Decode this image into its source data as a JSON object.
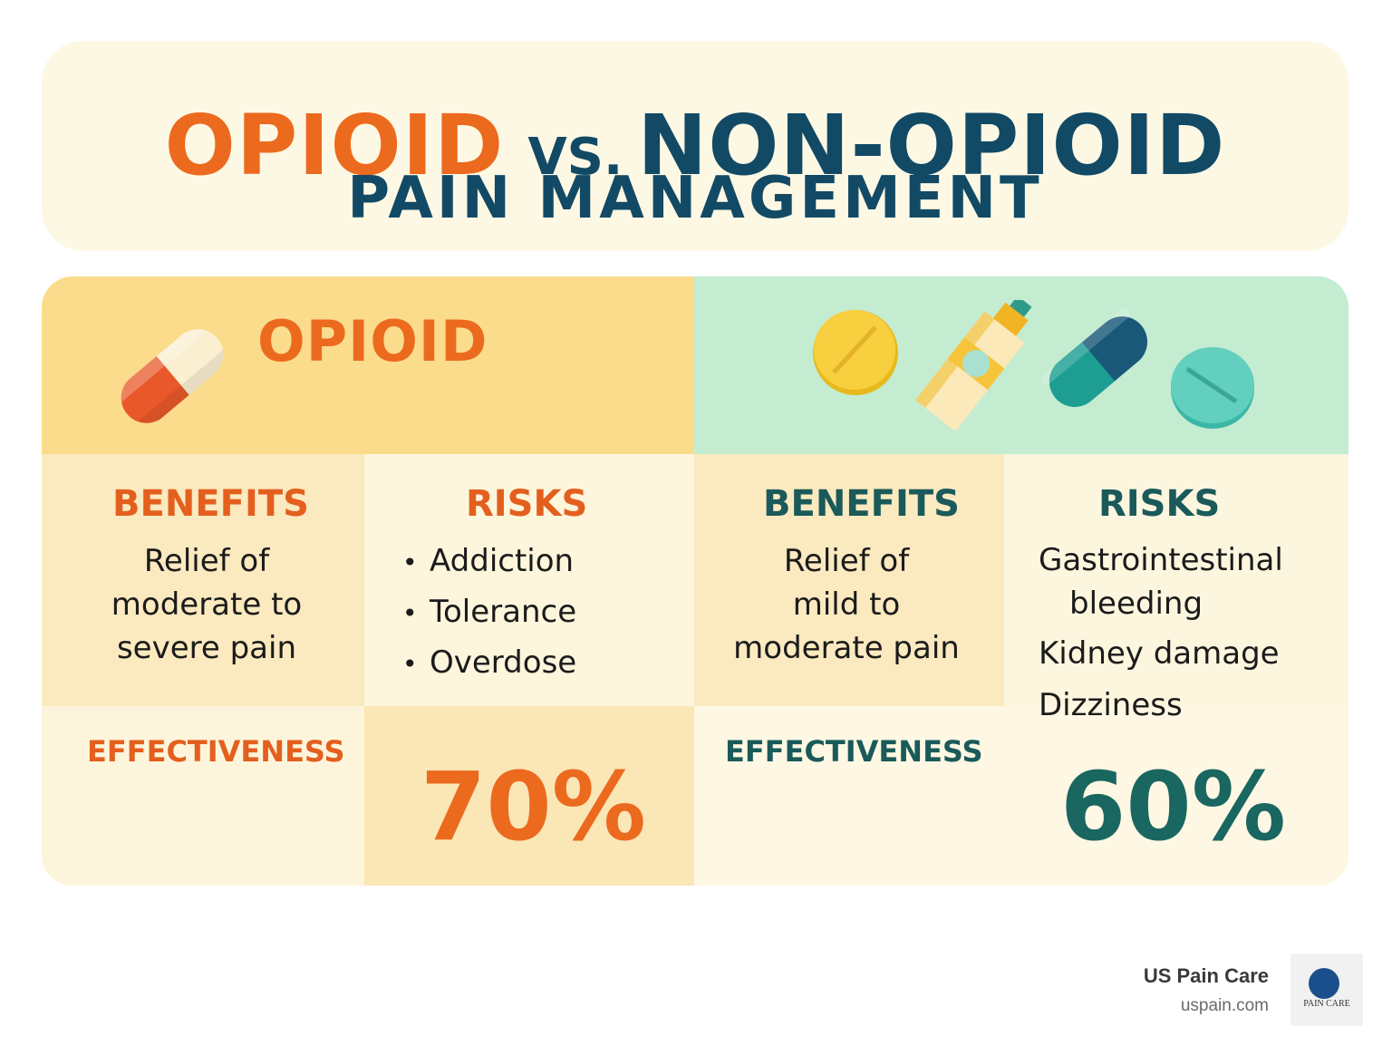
{
  "title": {
    "opioid": "OPIOID",
    "vs": "VS.",
    "non_opioid": "NON-OPIOID",
    "subtitle": "PAIN MANAGEMENT"
  },
  "opioid": {
    "header": "OPIOID",
    "benefits_heading": "BENEFITS",
    "benefits_lines": [
      "Relief of",
      "moderate to",
      "severe pain"
    ],
    "risks_heading": "RISKS",
    "risks": [
      "Addiction",
      "Tolerance",
      "Overdose"
    ],
    "effectiveness_label": "EFFECTIVENESS",
    "effectiveness_value": "70%"
  },
  "non_opioid": {
    "benefits_heading": "BENEFITS",
    "benefits_lines": [
      "Relief of",
      "mild to",
      "moderate pain"
    ],
    "risks_heading": "RISKS",
    "risks_lines": [
      "Gastrointestinal",
      "bleeding",
      "Kidney damage",
      "Dizziness"
    ],
    "effectiveness_label": "EFFECTIVENESS",
    "effectiveness_value": "60%"
  },
  "brand": {
    "name": "US Pain Care",
    "url": "uspain.com",
    "logo_text": "PAIN CARE"
  },
  "colors": {
    "orange": "#ec6a1e",
    "navy": "#124a66",
    "teal": "#1a5a5a"
  }
}
